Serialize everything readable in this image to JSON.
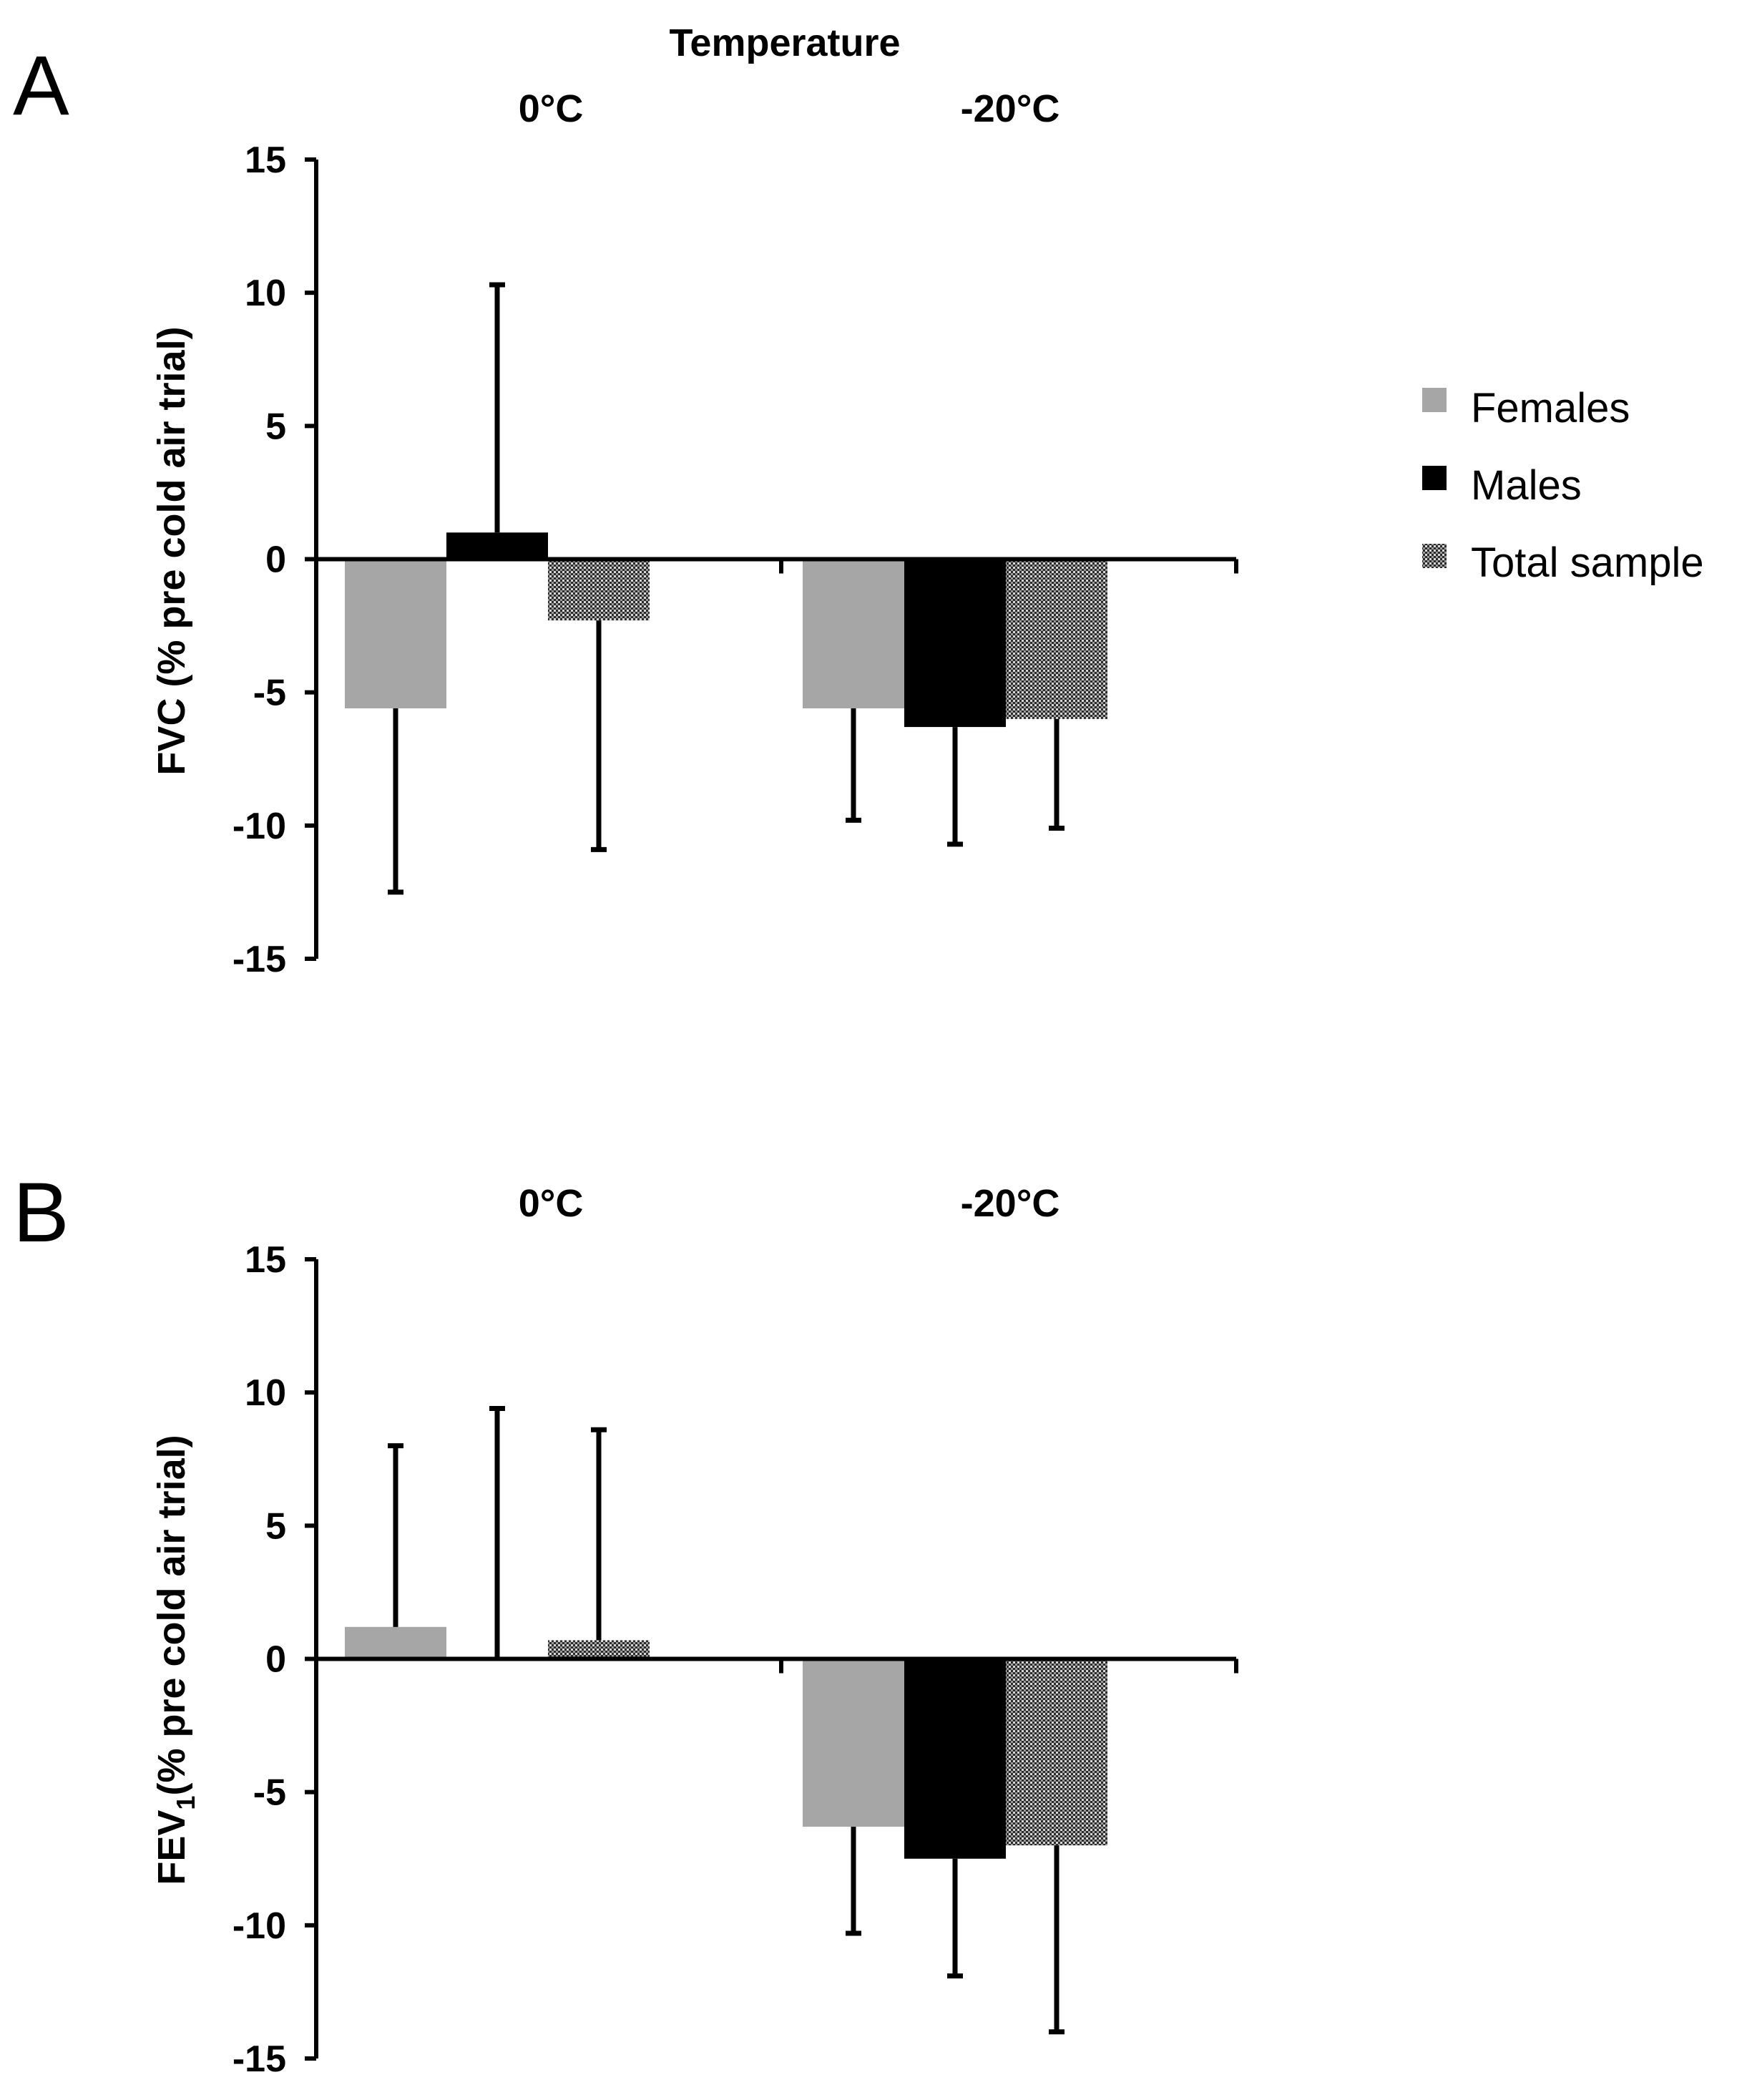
{
  "figure": {
    "temperature_label": "Temperature",
    "legend": [
      {
        "label": "Females",
        "color": "#a6a6a6",
        "pattern": "solid"
      },
      {
        "label": "Males",
        "color": "#000000",
        "pattern": "solid"
      },
      {
        "label": "Total sample",
        "color": "#3a3a3a",
        "pattern": "dotted"
      }
    ]
  },
  "chart_data": [
    {
      "type": "bar",
      "panel": "A",
      "title": "Temperature",
      "categories": [
        "0°C",
        "-20°C"
      ],
      "ylabel": "FVC (% pre cold air trial)",
      "ylabel_sub": "",
      "ylabel_after": "",
      "ylim": [
        -15,
        15
      ],
      "yticks": [
        15,
        10,
        5,
        0,
        -5,
        -10,
        -15
      ],
      "series": [
        {
          "name": "Females",
          "values": [
            -5.6,
            -5.6
          ],
          "error": [
            6.9,
            4.2
          ]
        },
        {
          "name": "Males",
          "values": [
            1.0,
            -6.3
          ],
          "error": [
            9.3,
            4.4
          ]
        },
        {
          "name": "Total sample",
          "values": [
            -2.3,
            -6.0
          ],
          "error": [
            8.6,
            4.1
          ]
        }
      ]
    },
    {
      "type": "bar",
      "panel": "B",
      "title": "",
      "categories": [
        "0°C",
        "-20°C"
      ],
      "ylabel": "FEV",
      "ylabel_sub": "1",
      "ylabel_after": "(% pre cold air trial)",
      "ylim": [
        -15,
        15
      ],
      "yticks": [
        15,
        10,
        5,
        0,
        -5,
        -10,
        -15
      ],
      "series": [
        {
          "name": "Females",
          "values": [
            1.2,
            -6.3
          ],
          "error": [
            6.8,
            4.0
          ]
        },
        {
          "name": "Males",
          "values": [
            0.0,
            -7.5
          ],
          "error": [
            9.4,
            4.4
          ]
        },
        {
          "name": "Total sample",
          "values": [
            0.7,
            -7.0
          ],
          "error": [
            7.9,
            7.0
          ]
        }
      ]
    }
  ]
}
